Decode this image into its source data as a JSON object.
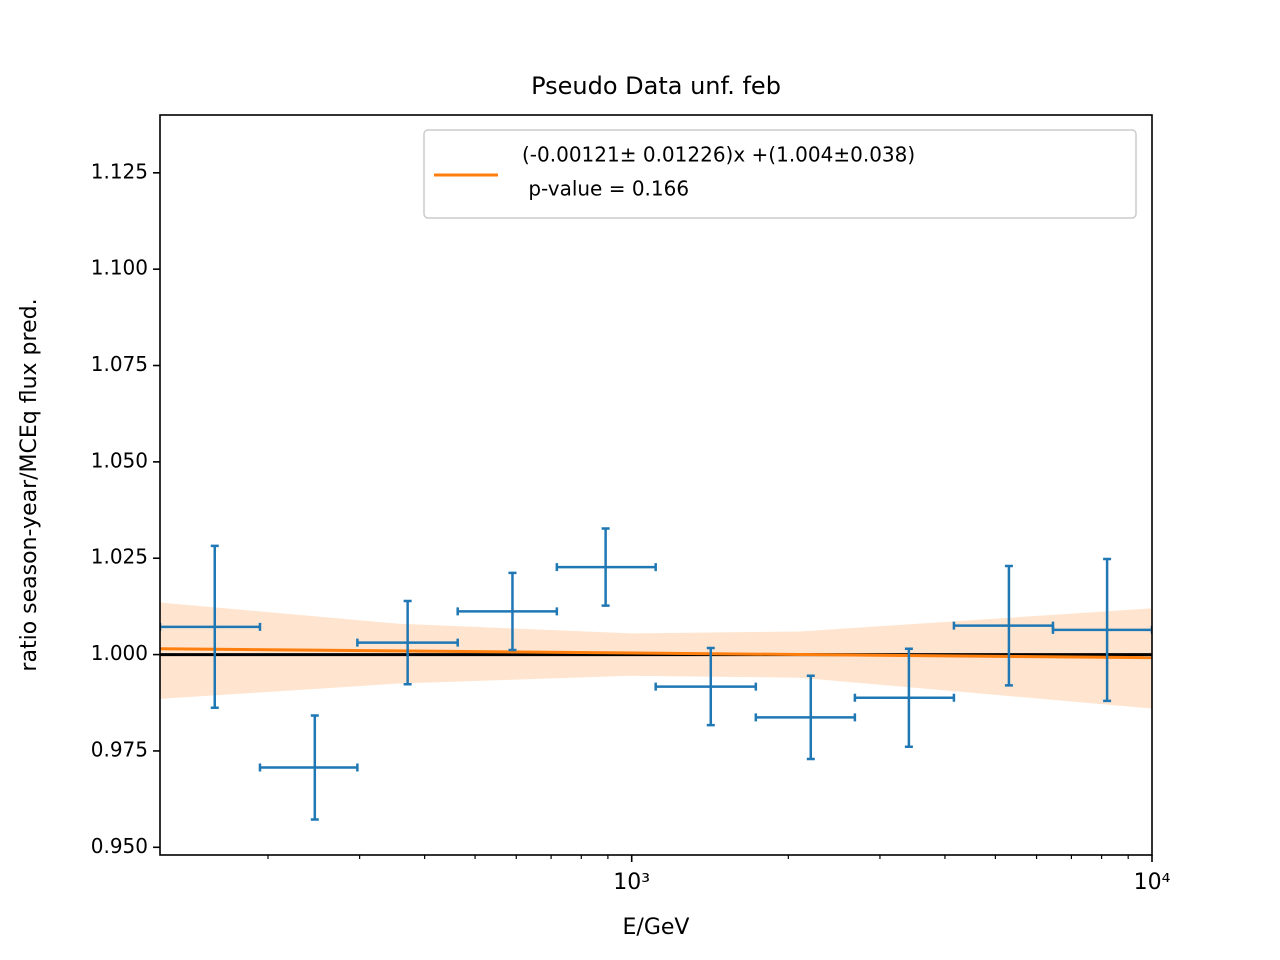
{
  "chart_data": {
    "type": "errorbar",
    "title": "Pseudo Data unf. feb",
    "xlabel": "E/GeV",
    "ylabel": "ratio season-year/MCEq flux pred.",
    "xscale": "log",
    "xlim": [
      124,
      10000
    ],
    "ylim": [
      0.948,
      1.14
    ],
    "xticks": [
      {
        "value": 1000,
        "label": "10³"
      },
      {
        "value": 10000,
        "label": "10⁴"
      }
    ],
    "xminorticks": [
      200,
      300,
      400,
      500,
      600,
      700,
      800,
      900,
      2000,
      3000,
      4000,
      5000,
      6000,
      7000,
      8000,
      9000
    ],
    "yticks": [
      {
        "value": 0.95,
        "label": "0.950"
      },
      0.975,
      {
        "value": 1.0,
        "label": "1.000"
      },
      1.025,
      {
        "value": 1.05,
        "label": "1.050"
      },
      1.075,
      {
        "value": 1.1,
        "label": "1.100"
      },
      1.125
    ],
    "data": {
      "color": "#1f77b4",
      "x": [
        158,
        246,
        371,
        590,
        891,
        1419,
        2209,
        3410,
        5309,
        8198
      ],
      "x_lo": [
        124,
        193,
        297,
        463,
        718,
        1112,
        1732,
        2685,
        4162,
        6451
      ],
      "x_hi": [
        193,
        297,
        463,
        718,
        1112,
        1732,
        2685,
        4162,
        6451,
        10000
      ],
      "values": [
        1.0072,
        0.9707,
        1.0031,
        1.0112,
        1.0227,
        0.9917,
        0.9837,
        0.9888,
        1.0075,
        1.0064
      ],
      "errors": [
        0.021,
        0.0135,
        0.0108,
        0.01,
        0.01,
        0.01,
        0.0108,
        0.0127,
        0.0155,
        0.0184
      ]
    },
    "fit": {
      "color": "#ff7f0e",
      "band_color": "#ffe5cf",
      "label_lines": [
        "(-0.00121± 0.01226)x +(1.004±0.038)",
        " p-value = 0.166"
      ],
      "x": [
        124,
        10000
      ],
      "values": [
        1.0015,
        0.9992
      ],
      "band": {
        "x": [
          124,
          358,
          1000,
          2103,
          10000
        ],
        "upper": [
          1.0135,
          1.008,
          1.0055,
          1.006,
          1.012
        ],
        "lower": [
          0.9885,
          0.9925,
          0.9945,
          0.994,
          0.986
        ]
      }
    },
    "reference_line": {
      "value": 1.0,
      "color": "#000000"
    },
    "legend": "upper right"
  }
}
